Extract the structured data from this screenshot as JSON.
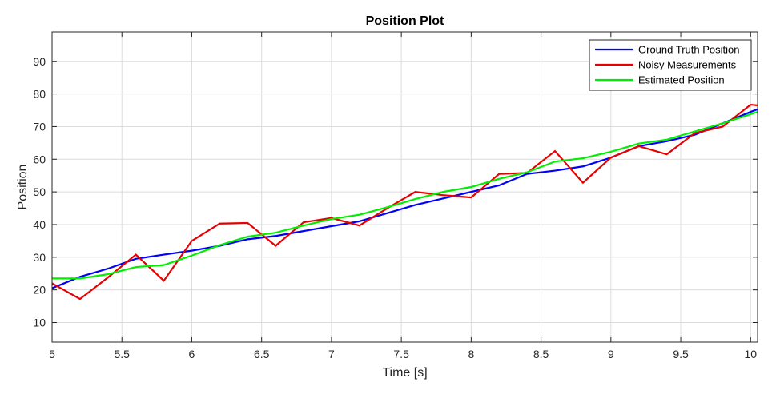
{
  "chart_data": {
    "type": "line",
    "title": "Position Plot",
    "xlabel": "Time [s]",
    "ylabel": "Position",
    "xlim": [
      5,
      10.05
    ],
    "ylim": [
      4,
      99
    ],
    "xticks": [
      5,
      5.5,
      6,
      6.5,
      7,
      7.5,
      8,
      8.5,
      9,
      9.5,
      10
    ],
    "xtick_labels": [
      "5",
      "5.5",
      "6",
      "6.5",
      "7",
      "7.5",
      "8",
      "8.5",
      "9",
      "9.5",
      "10"
    ],
    "yticks": [
      10,
      20,
      30,
      40,
      50,
      60,
      70,
      80,
      90
    ],
    "ytick_labels": [
      "10",
      "20",
      "30",
      "40",
      "50",
      "60",
      "70",
      "80",
      "90"
    ],
    "grid": true,
    "legend_position": "top-right",
    "x": [
      5.0,
      5.2,
      5.4,
      5.6,
      5.8,
      6.0,
      6.2,
      6.4,
      6.6,
      6.8,
      7.0,
      7.2,
      7.4,
      7.6,
      7.8,
      8.0,
      8.2,
      8.4,
      8.6,
      8.8,
      9.0,
      9.2,
      9.4,
      9.6,
      9.8,
      10.0,
      10.05
    ],
    "series": [
      {
        "name": "Ground Truth Position",
        "color": "#0000ff",
        "values": [
          20.5,
          24.0,
          26.5,
          29.5,
          30.8,
          32.0,
          33.5,
          35.5,
          36.5,
          38.0,
          39.5,
          41.0,
          43.5,
          46.0,
          48.0,
          50.0,
          52.0,
          55.5,
          56.5,
          57.8,
          60.5,
          64.0,
          65.5,
          67.5,
          71.0,
          74.5,
          75.3
        ]
      },
      {
        "name": "Noisy Measurements",
        "color": "#e60000",
        "values": [
          22.0,
          17.2,
          23.8,
          30.8,
          22.8,
          35.0,
          40.3,
          40.5,
          33.5,
          40.7,
          42.0,
          39.7,
          45.0,
          50.0,
          49.0,
          48.3,
          55.5,
          55.8,
          62.5,
          52.8,
          60.5,
          64.0,
          61.5,
          68.0,
          70.0,
          76.7,
          76.5
        ]
      },
      {
        "name": "Estimated Position",
        "color": "#00ee00",
        "values": [
          23.5,
          23.5,
          24.8,
          27.0,
          27.6,
          30.5,
          33.7,
          36.3,
          37.5,
          39.7,
          41.7,
          43.0,
          45.3,
          47.8,
          50.0,
          51.5,
          54.0,
          56.0,
          59.3,
          60.3,
          62.3,
          64.8,
          66.0,
          68.5,
          71.0,
          73.8,
          74.5
        ]
      }
    ]
  }
}
